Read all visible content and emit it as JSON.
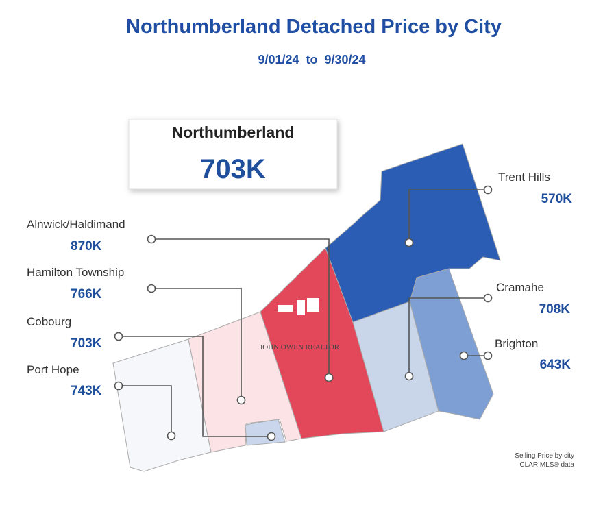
{
  "header": {
    "title": "Northumberland Detached Price by City",
    "subtitle": "9/01/24  to  9/30/24"
  },
  "summary": {
    "name": "Northumberland",
    "value": "703K"
  },
  "regions": [
    {
      "name": "Trent Hills",
      "value": "570K"
    },
    {
      "name": "Alnwick/Haldimand",
      "value": "870K"
    },
    {
      "name": "Cramahe",
      "value": "708K"
    },
    {
      "name": "Hamilton Township",
      "value": "766K"
    },
    {
      "name": "Brighton",
      "value": "643K"
    },
    {
      "name": "Cobourg",
      "value": "703K"
    },
    {
      "name": "Port Hope",
      "value": "743K"
    }
  ],
  "watermark": "JOHN OWEN REALTOR",
  "footnote": [
    "Selling Price by city",
    "CLAR MLS® data"
  ]
}
